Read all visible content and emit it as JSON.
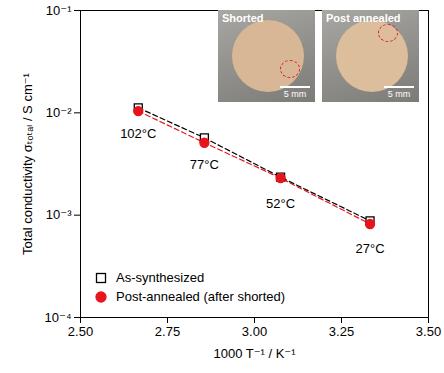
{
  "chart_data": {
    "type": "scatter",
    "x_label": "1000 T⁻¹ / K⁻¹",
    "y_label": "Total conductivity σₜₒₜₐₗ / S cm⁻¹",
    "x": [
      2.666,
      2.856,
      3.075,
      3.332
    ],
    "series": [
      {
        "name": "As-synthesized",
        "color": "#000000",
        "marker": "square-open",
        "line_style": "dashed",
        "values": [
          0.0112,
          0.0057,
          0.00235,
          0.00088
        ]
      },
      {
        "name": "Post-annealed (after shorted)",
        "color": "#e8141c",
        "marker": "circle",
        "line_style": "dashed",
        "values": [
          0.0104,
          0.0051,
          0.0023,
          0.00082
        ]
      }
    ],
    "xlim": [
      2.5,
      3.5
    ],
    "xticks": [
      {
        "value": 2.5,
        "label": "2.50"
      },
      2.75,
      {
        "value": 3,
        "label": "3.00"
      },
      3.25,
      {
        "value": 3.5,
        "label": "3.50"
      }
    ],
    "ylim": [
      0.0001,
      0.1
    ],
    "yticks": [
      {
        "value": 0.0001,
        "label": "10⁻⁴"
      },
      {
        "value": 0.001,
        "label": "10⁻³"
      },
      {
        "value": 0.01,
        "label": "10⁻²"
      },
      {
        "value": 0.1,
        "label": "10⁻¹"
      }
    ],
    "log": "y",
    "grid": false,
    "legend": "lower left",
    "annotations": [
      {
        "text": "102°C",
        "x": 2.666,
        "y": 0.0062
      },
      {
        "text": "77°C",
        "x": 2.856,
        "y": 0.0031
      },
      {
        "text": "52°C",
        "x": 3.075,
        "y": 0.0013
      },
      {
        "text": "27°C",
        "x": 3.332,
        "y": 0.00047
      }
    ],
    "insets": [
      {
        "label": "Shorted",
        "scale_bar": "5 mm"
      },
      {
        "label": "Post annealed",
        "scale_bar": "5 mm"
      }
    ]
  }
}
